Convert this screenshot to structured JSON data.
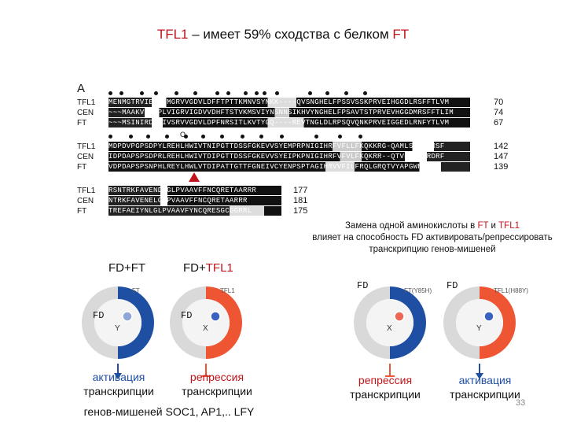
{
  "title": {
    "prefix": "TFL1",
    "middle": " – имеет 59% сходства с белком ",
    "suffix": "FT"
  },
  "panel_label": "A",
  "alignment": {
    "blocks": [
      {
        "rows": [
          {
            "name": "TFL1",
            "seq": "MENMGTRVIEPLIMGRVVGDVLDFFTPTTKMNVSYNKK----QVSNGHELFPSSVSSKPRVEIHGGDLRSFFTLVM",
            "num": "70"
          },
          {
            "name": "CEN",
            "seq": "~~~MAAKVSSDPLVIGRVIGDVVDHFTSTVKMSVIYNSNNSIKHVYNGHELFPSAVTSTPRVEVHGGDMRSFFTLIM",
            "num": "74"
          },
          {
            "name": "FT",
            "seq": "~~~MSINIRDPLIVSRVVGDVLDPFNRSITLKVTYGQ----REVTNGLDLRPSQVQNKPRVEIGGEDLRNFYTLVM",
            "num": "67"
          }
        ]
      },
      {
        "rows": [
          {
            "name": "TFL1",
            "seq": "MDPDVPGPSDPYLREHLHWIVTNIPGTTDSSFGKEVVSYEMPRPNIGIHRFVFLLFKQKKRG-QAMLSPPVDRSF",
            "num": "142"
          },
          {
            "name": "CEN",
            "seq": "IDPDAPSPSDPRLREHLHWIVTDIPGTTDSSFGKEVVSYEIPKPNIGIHRFVFVLFKQKRR--QTVNPPSSRDRF",
            "num": "147"
          },
          {
            "name": "FT",
            "seq": "VDPDAPSPSNPHLREYLHWLVTDIPATTGTTFGNEIVCYENPSPTAGIHRVVFILFRQLGRQTVYAPGWRQNFN",
            "num": "139"
          }
        ]
      },
      {
        "rows": [
          {
            "name": "TFL1",
            "seq": "RSNTRKFAVENDLGLPVAAVFFNCQRETAARRR",
            "num": "177"
          },
          {
            "name": "CEN",
            "seq": "NTRKFAVENELGLPVAAVFFNCQRETAARRR",
            "num": "181"
          },
          {
            "name": "FT",
            "seq": "TREFAEIYNLGLPVAAVFYNCQRESGCGGRRL",
            "num": "175"
          }
        ]
      }
    ],
    "marker_symbol": "O"
  },
  "fd_labels": {
    "left_title": "FD+FT",
    "left_prefix": "FD+",
    "left_highlight": "FT",
    "right_prefix": "FD+",
    "right_highlight": "TFL1"
  },
  "note": {
    "line1_pre": "Замена одной аминокислоты в ",
    "line1_ft": "FT",
    "line1_mid": " и ",
    "line1_tfl": "TFL1",
    "rest": "влияет на способность FD активировать/репрессировать транскрипцию генов-мишеней"
  },
  "diagrams": [
    {
      "top_left": "",
      "top_right": "FT",
      "left_label": "FD",
      "center_letter": "Y",
      "half_color": "#1f4fa3",
      "dot_color": "#8fa6d8",
      "arrow": "down"
    },
    {
      "top_left": "",
      "top_right": "TFL1",
      "left_label": "FD",
      "center_letter": "X",
      "half_color": "#ee5533",
      "dot_color": "#3a62c0",
      "arrow": "bar"
    },
    {
      "top_left": "FD",
      "top_right": "FT(Y85H)",
      "left_label": "",
      "center_letter": "X",
      "half_color": "#1f4fa3",
      "dot_color": "#ee6655",
      "arrow": "bar"
    },
    {
      "top_left": "FD",
      "top_right": "TFL1(H88Y)",
      "left_label": "",
      "center_letter": "Y",
      "half_color": "#ee5533",
      "dot_color": "#3a62c0",
      "arrow": "down"
    }
  ],
  "captions": {
    "c1_l1": "активация",
    "c1_l2": "транскрипции",
    "c2_l1": "репрессия",
    "c2_l2": "транскрипции",
    "c3": "генов-мишеней SOC1, AP1,.. LFY",
    "c4_l1": "репрессия",
    "c4_l2": "транскрипции",
    "c5_l1": "активация",
    "c5_l2": "транскрипции"
  },
  "slide_number": "33",
  "colors": {
    "accent_red": "#c0141b",
    "ft_blue": "#1f4fa3",
    "tfl_red": "#ee5533",
    "grey": "#d9d9d9"
  }
}
